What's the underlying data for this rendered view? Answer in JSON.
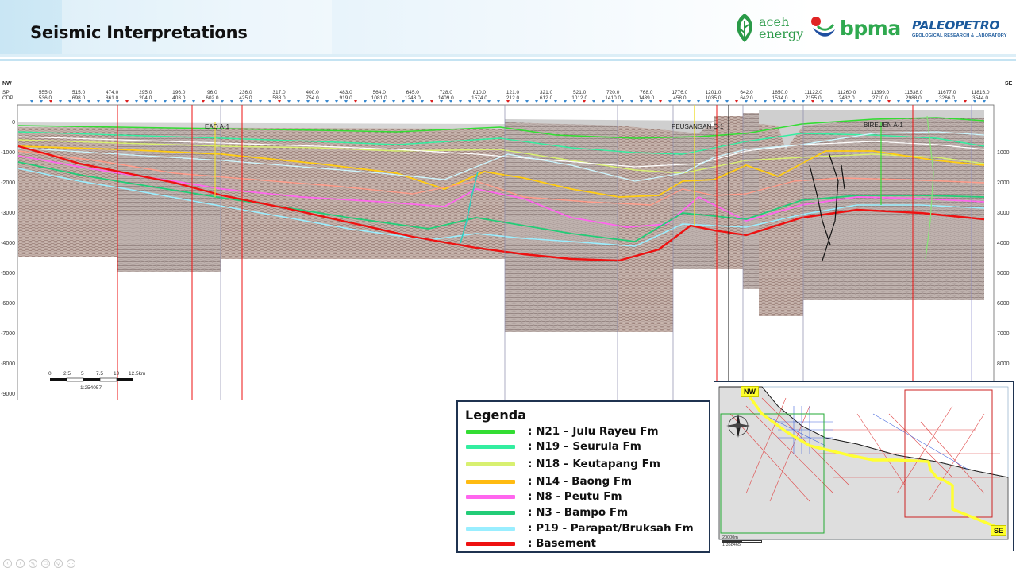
{
  "slide": {
    "title": "Seismic Interpretations"
  },
  "logos": {
    "aceh_line1": "aceh",
    "aceh_line2": "energy",
    "bpma": "bpma",
    "paleo_main": "PALEOPETRO",
    "paleo_sub": "GEOLOGICAL RESEARCH & LABORATORY"
  },
  "seismic": {
    "left_direction": "NW",
    "right_direction": "SE",
    "row_labels": [
      "SP",
      "CDP"
    ],
    "sp_ticks": [
      "555.0",
      "515.0",
      "474.0",
      "295.0",
      "196.0",
      "96.0",
      "236.0",
      "317.0",
      "400.0",
      "483.0",
      "564.0",
      "645.0",
      "728.0",
      "810.0",
      "121.0",
      "321.0",
      "521.0",
      "720.0",
      "768.0",
      "1776.0",
      "1201.0",
      "642.0",
      "1850.0",
      "11122.0",
      "11260.0",
      "11399.0",
      "11538.0",
      "11677.0",
      "11816.0"
    ],
    "cdp_ticks": [
      "536.0",
      "698.0",
      "861.0",
      "204.0",
      "403.0",
      "602.0",
      "425.0",
      "588.0",
      "754.0",
      "919.0",
      "1081.0",
      "1243.0",
      "1409.0",
      "1574.0",
      "212.0",
      "612.0",
      "1012.0",
      "1410.0",
      "1439.0",
      "458.0",
      "1035.0",
      "642.0",
      "1534.0",
      "2155.0",
      "2432.0",
      "2710.0",
      "2988.0",
      "3266.0",
      "3544.0"
    ],
    "depth_ticks_left": [
      "0",
      "-1000",
      "-2000",
      "-3000",
      "-4000",
      "-5000",
      "-6000",
      "-7000",
      "-8000",
      "-9000"
    ],
    "depth_ticks_right": [
      "1000",
      "2000",
      "3000",
      "4000",
      "5000",
      "6000",
      "7000",
      "8000"
    ],
    "wells": [
      "EAQ A-1",
      "PEUSANGAN C-1",
      "BIREUEN A-1"
    ],
    "scale_bar": {
      "ticks": [
        "0",
        "2.5",
        "5",
        "7.5",
        "10",
        "12.5km"
      ],
      "ratio": "1:254057"
    }
  },
  "legend": {
    "title": "Legenda",
    "items": [
      {
        "label": ": N21 – Julu Rayeu Fm",
        "color": "#33dd33"
      },
      {
        "label": ": N19 – Seurula Fm",
        "color": "#33eea0"
      },
      {
        "label": ": N18 – Keutapang Fm",
        "color": "#d8f070"
      },
      {
        "label": ": N14 - Baong Fm",
        "color": "#ffbb11"
      },
      {
        "label": ": N8 - Peutu Fm",
        "color": "#ff66ee"
      },
      {
        "label": ": N3 - Bampo Fm",
        "color": "#22cc77"
      },
      {
        "label": ": P19 - Parapat/Bruksah Fm",
        "color": "#99eeff"
      },
      {
        "label": ": Basement",
        "color": "#ee1111"
      }
    ]
  },
  "map": {
    "nw_label": "NW",
    "se_label": "SE",
    "scale_text": "20000m",
    "scale_ratio": "1:358465"
  },
  "colors": {
    "header_accent": "#c9e6f4",
    "frame": "#1f3350",
    "well_line": "#ee1111"
  }
}
